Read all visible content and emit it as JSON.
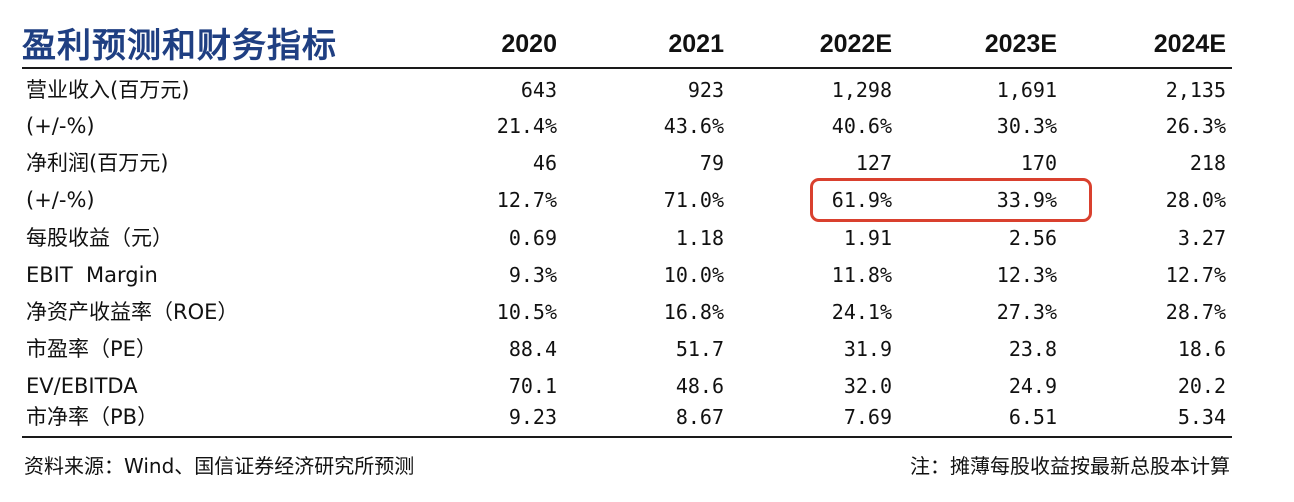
{
  "header": {
    "title": "盈利预测和财务指标",
    "years": [
      "2020",
      "2021",
      "2022E",
      "2023E",
      "2024E"
    ]
  },
  "rows": [
    {
      "label": "营业收入(百万元)",
      "values": [
        "643",
        "923",
        "1,298",
        "1,691",
        "2,135"
      ]
    },
    {
      "label": "(+/-%)",
      "values": [
        "21.4%",
        "43.6%",
        "40.6%",
        "30.3%",
        "26.3%"
      ]
    },
    {
      "label": "净利润(百万元)",
      "values": [
        "46",
        "79",
        "127",
        "170",
        "218"
      ]
    },
    {
      "label": "(+/-%)",
      "values": [
        "12.7%",
        "71.0%",
        "61.9%",
        "33.9%",
        "28.0%"
      ]
    },
    {
      "label": "每股收益（元）",
      "values": [
        "0.69",
        "1.18",
        "1.91",
        "2.56",
        "3.27"
      ]
    },
    {
      "label": "EBIT  Margin",
      "values": [
        "9.3%",
        "10.0%",
        "11.8%",
        "12.3%",
        "12.7%"
      ]
    },
    {
      "label": "净资产收益率（ROE）",
      "values": [
        "10.5%",
        "16.8%",
        "24.1%",
        "27.3%",
        "28.7%"
      ]
    },
    {
      "label": "市盈率（PE）",
      "values": [
        "88.4",
        "51.7",
        "31.9",
        "23.8",
        "18.6"
      ]
    },
    {
      "label": "EV/EBITDA",
      "values": [
        "70.1",
        "48.6",
        "32.0",
        "24.9",
        "20.2"
      ]
    },
    {
      "label": "市净率（PB）",
      "values": [
        "9.23",
        "8.67",
        "7.69",
        "6.51",
        "5.34"
      ]
    }
  ],
  "highlight": {
    "color": "#d9402e"
  },
  "colors": {
    "title": "#1f3f82"
  },
  "footer": {
    "source": "资料来源：Wind、国信证券经济研究所预测",
    "note": "注：摊薄每股收益按最新总股本计算"
  }
}
